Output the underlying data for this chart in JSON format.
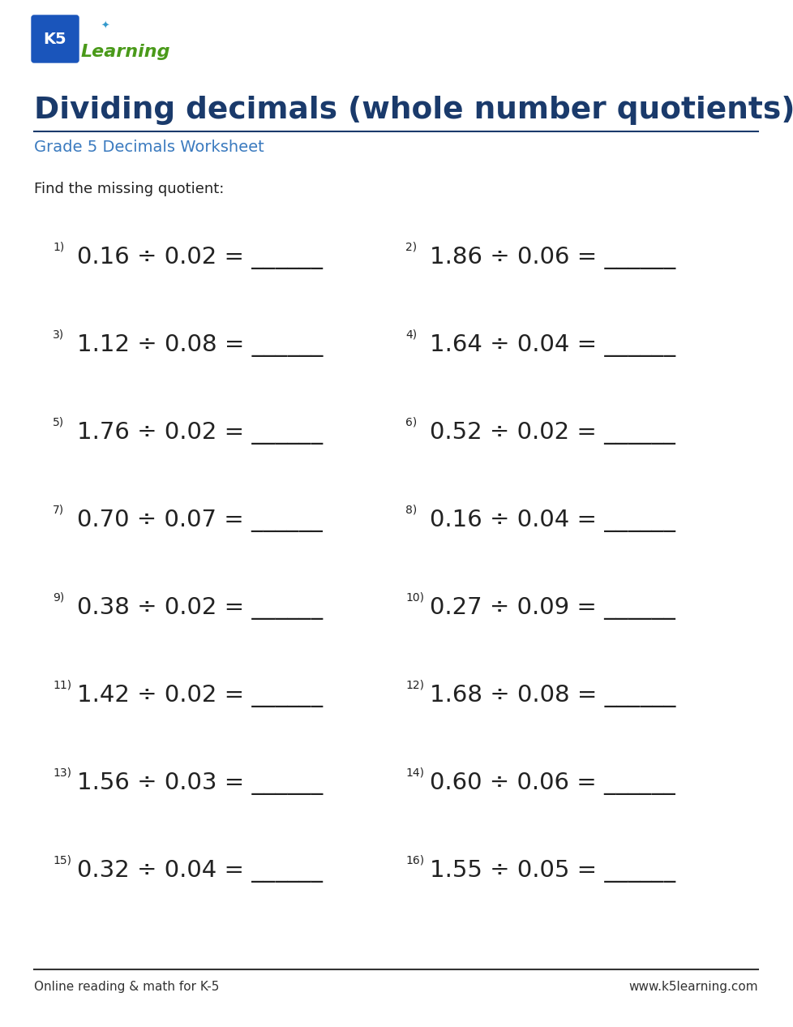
{
  "title": "Dividing decimals (whole number quotients)",
  "subtitle": "Grade 5 Decimals Worksheet",
  "instruction": "Find the missing quotient:",
  "title_color": "#1a3a6b",
  "subtitle_color": "#3a7abf",
  "instruction_color": "#222222",
  "footer_left": "Online reading & math for K-5",
  "footer_right": "www.k5learning.com",
  "problems": [
    {
      "num": "1)",
      "expr": "0.16 ÷ 0.02 = ______"
    },
    {
      "num": "2)",
      "expr": "1.86 ÷ 0.06 = ______"
    },
    {
      "num": "3)",
      "expr": "1.12 ÷ 0.08 = ______"
    },
    {
      "num": "4)",
      "expr": "1.64 ÷ 0.04 = ______"
    },
    {
      "num": "5)",
      "expr": "1.76 ÷ 0.02 = ______"
    },
    {
      "num": "6)",
      "expr": "0.52 ÷ 0.02 = ______"
    },
    {
      "num": "7)",
      "expr": "0.70 ÷ 0.07 = ______"
    },
    {
      "num": "8)",
      "expr": "0.16 ÷ 0.04 = ______"
    },
    {
      "num": "9)",
      "expr": "0.38 ÷ 0.02 = ______"
    },
    {
      "num": "10)",
      "expr": "0.27 ÷ 0.09 = ______"
    },
    {
      "num": "11)",
      "expr": "1.42 ÷ 0.02 = ______"
    },
    {
      "num": "12)",
      "expr": "1.68 ÷ 0.08 = ______"
    },
    {
      "num": "13)",
      "expr": "1.56 ÷ 0.03 = ______"
    },
    {
      "num": "14)",
      "expr": "0.60 ÷ 0.06 = ______"
    },
    {
      "num": "15)",
      "expr": "0.32 ÷ 0.04 = ______"
    },
    {
      "num": "16)",
      "expr": "1.55 ÷ 0.05 = ______"
    }
  ],
  "bg_color": "#ffffff",
  "title_fontsize": 27,
  "subtitle_fontsize": 14,
  "instruction_fontsize": 13,
  "problem_num_fontsize": 10,
  "problem_expr_fontsize": 21,
  "footer_fontsize": 11,
  "logo_k5_color": "#1a55bb",
  "logo_learning_color": "#4a9a1a"
}
